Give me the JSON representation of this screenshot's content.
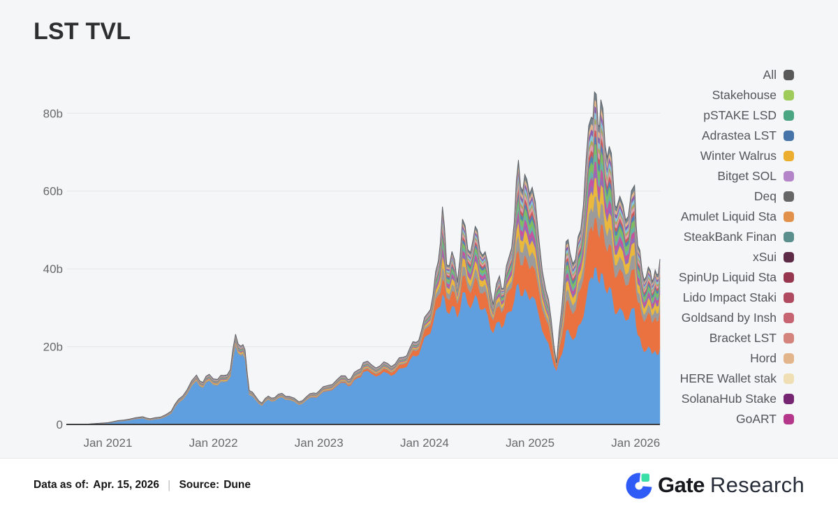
{
  "title": "LST TVL",
  "legend": {
    "items": [
      {
        "label": "All",
        "color": "#595959"
      },
      {
        "label": "Stakehouse",
        "color": "#9ecb59"
      },
      {
        "label": "pSTAKE LSD",
        "color": "#4ba684"
      },
      {
        "label": "Adrastea LST",
        "color": "#4674a9"
      },
      {
        "label": "Winter Walrus",
        "color": "#ecae2f"
      },
      {
        "label": "Bitget SOL",
        "color": "#b384c8"
      },
      {
        "label": "Deq",
        "color": "#666666"
      },
      {
        "label": "Amulet Liquid Sta",
        "color": "#e2914a"
      },
      {
        "label": "SteakBank Finan",
        "color": "#5b8f8d"
      },
      {
        "label": "xSui",
        "color": "#5e2b47"
      },
      {
        "label": "SpinUp Liquid Sta",
        "color": "#97374f"
      },
      {
        "label": "Lido Impact Staki",
        "color": "#b04a60"
      },
      {
        "label": "Goldsand by Insh",
        "color": "#c66571"
      },
      {
        "label": "Bracket LST",
        "color": "#d4837d"
      },
      {
        "label": "Hord",
        "color": "#e3b58a"
      },
      {
        "label": "HERE Wallet stak",
        "color": "#f0dfb4"
      },
      {
        "label": "SolanaHub Stake",
        "color": "#752572"
      },
      {
        "label": "GoART",
        "color": "#b5378b"
      }
    ]
  },
  "footer": {
    "data_as_of_label": "Data as of:",
    "data_as_of_value": "Apr. 15, 2026",
    "separator": "|",
    "source_label": "Source:",
    "source_value": "Dune",
    "brand_bold": "Gate",
    "brand_light": "Research"
  },
  "chart_data": {
    "type": "area",
    "stacked": true,
    "title": "LST TVL",
    "unit": "USD billions (b)",
    "grid": "horizontal",
    "legend_position": "right",
    "x_range": [
      2020.62,
      2026.23
    ],
    "x_tick_positions": [
      2021,
      2022,
      2023,
      2024,
      2025,
      2026
    ],
    "x_tick_labels": [
      "Jan 2021",
      "Jan 2022",
      "Jan 2023",
      "Jan 2024",
      "Jan 2025",
      "Jan 2026"
    ],
    "y_ticks": [
      0,
      20,
      40,
      60,
      80
    ],
    "y_tick_labels": [
      "0",
      "20b",
      "40b",
      "60b",
      "80b"
    ],
    "ylim": [
      0,
      91
    ],
    "x": [
      2020.62,
      2020.8,
      2021.0,
      2021.1,
      2021.2,
      2021.33,
      2021.4,
      2021.5,
      2021.6,
      2021.67,
      2021.75,
      2021.84,
      2021.9,
      2021.96,
      2022.04,
      2022.1,
      2022.16,
      2022.21,
      2022.26,
      2022.3,
      2022.34,
      2022.4,
      2022.46,
      2022.52,
      2022.58,
      2022.65,
      2022.72,
      2022.81,
      2022.88,
      2022.95,
      2023.0,
      2023.08,
      2023.17,
      2023.25,
      2023.3,
      2023.37,
      2023.42,
      2023.5,
      2023.58,
      2023.65,
      2023.72,
      2023.8,
      2023.86,
      2023.92,
      2023.97,
      2024.03,
      2024.08,
      2024.13,
      2024.17,
      2024.21,
      2024.26,
      2024.31,
      2024.36,
      2024.41,
      2024.46,
      2024.5,
      2024.55,
      2024.6,
      2024.65,
      2024.71,
      2024.75,
      2024.8,
      2024.85,
      2024.89,
      2024.93,
      2024.97,
      2025.02,
      2025.08,
      2025.15,
      2025.2,
      2025.25,
      2025.3,
      2025.34,
      2025.38,
      2025.43,
      2025.48,
      2025.53,
      2025.58,
      2025.61,
      2025.645,
      2025.67,
      2025.71,
      2025.75,
      2025.79,
      2025.82,
      2025.88,
      2025.93,
      2025.99,
      2026.02,
      2026.06,
      2026.1,
      2026.14,
      2026.17,
      2026.2,
      2026.23
    ],
    "series": [
      {
        "name": "base-layer-blue",
        "color": "#5f9fe0",
        "values": [
          0.01,
          0.05,
          0.35,
          0.8,
          1.1,
          1.6,
          1.1,
          1.5,
          2.8,
          5.6,
          7.8,
          11.2,
          9.4,
          11.2,
          10.0,
          10.9,
          12.2,
          20.3,
          17.6,
          16.8,
          7.6,
          6.3,
          4.8,
          6.4,
          6.0,
          7.0,
          6.3,
          5.0,
          6.2,
          7.0,
          7.4,
          8.6,
          9.9,
          10.7,
          10.0,
          12.0,
          13.5,
          13.0,
          12.8,
          13.2,
          13.0,
          14.5,
          16.5,
          17.5,
          20.0,
          23.0,
          26.0,
          30.0,
          33.5,
          29.0,
          30.5,
          27.5,
          34.0,
          31.0,
          31.5,
          32.5,
          29.5,
          28.0,
          23.5,
          26.5,
          25.5,
          29.0,
          32.0,
          36.3,
          33.0,
          34.0,
          33.0,
          28.5,
          22.0,
          18.0,
          13.8,
          18.0,
          24.0,
          23.0,
          22.5,
          26.0,
          32.0,
          38.0,
          40.3,
          37.0,
          39.0,
          35.0,
          35.5,
          31.0,
          28.5,
          29.0,
          27.0,
          30.0,
          23.0,
          20.0,
          19.0,
          19.5,
          18.5,
          18.0,
          19.5
        ]
      },
      {
        "name": "second-layer-orange",
        "color": "#e97240",
        "values": [
          0,
          0,
          0,
          0,
          0,
          0,
          0,
          0,
          0,
          0,
          0,
          0,
          0,
          0,
          0,
          0,
          0,
          0,
          0,
          0,
          0,
          0,
          0,
          0,
          0,
          0,
          0,
          0,
          0,
          0.1,
          0.1,
          0.15,
          0.2,
          0.25,
          0.3,
          0.4,
          0.5,
          0.6,
          0.7,
          0.8,
          0.9,
          1.0,
          1.2,
          1.4,
          1.6,
          2.0,
          2.5,
          3.2,
          4.0,
          3.6,
          3.8,
          3.5,
          4.2,
          4.0,
          4.2,
          4.5,
          4.2,
          4.0,
          3.3,
          4.0,
          4.2,
          5.5,
          7.0,
          8.5,
          8.0,
          8.5,
          8.0,
          6.5,
          5.0,
          4.0,
          0.8,
          4.5,
          7.5,
          7.0,
          7.0,
          9.0,
          11.5,
          13.0,
          12.6,
          12.0,
          12.5,
          11.5,
          11.0,
          10.0,
          9.5,
          9.8,
          9.0,
          10.0,
          8.5,
          8.0,
          8.3,
          8.6,
          8.2,
          8.5,
          9.8
        ]
      },
      {
        "name": "other-protocols-combined",
        "color": "multi-stripe",
        "values": [
          0.01,
          0.03,
          0.1,
          0.2,
          0.25,
          0.4,
          0.35,
          0.4,
          0.6,
          0.9,
          1.1,
          1.5,
          1.4,
          1.7,
          1.6,
          1.7,
          1.9,
          2.9,
          2.5,
          2.4,
          1.1,
          0.9,
          0.7,
          0.9,
          0.9,
          1.0,
          0.9,
          0.8,
          0.9,
          1.0,
          1.1,
          1.25,
          1.4,
          1.55,
          1.4,
          1.6,
          1.9,
          1.7,
          1.6,
          1.7,
          1.6,
          1.8,
          1.9,
          2.2,
          2.5,
          3.6,
          4.7,
          8.8,
          18.5,
          8.4,
          10.2,
          5.5,
          14.6,
          10.0,
          11.8,
          13.0,
          9.8,
          9.5,
          4.0,
          7.7,
          5.3,
          8.5,
          13.0,
          23.2,
          19.0,
          20.5,
          20.0,
          13.5,
          7.5,
          5.0,
          1.2,
          7.5,
          15.5,
          14.0,
          13.0,
          15.0,
          24.5,
          28.0,
          32.6,
          28.0,
          32.0,
          25.5,
          25.0,
          21.0,
          17.8,
          17.7,
          17.5,
          21.5,
          14.5,
          11.7,
          10.7,
          11.4,
          10.8,
          12.0,
          13.2
        ]
      }
    ],
    "others_stripes": [
      {
        "color": "#9b9b9b",
        "weight": 0.17
      },
      {
        "color": "#e9b83d",
        "weight": 0.15
      },
      {
        "color": "#8f6db8",
        "weight": 0.06
      },
      {
        "color": "#c8539c",
        "weight": 0.07
      },
      {
        "color": "#67b1a9",
        "weight": 0.06
      },
      {
        "color": "#80bd60",
        "weight": 0.08
      },
      {
        "color": "#5381b5",
        "weight": 0.06
      },
      {
        "color": "#cc5a5a",
        "weight": 0.05
      },
      {
        "color": "#e0a0ae",
        "weight": 0.05
      },
      {
        "color": "#a9a95d",
        "weight": 0.04
      },
      {
        "color": "#84c6d8",
        "weight": 0.05
      },
      {
        "color": "#8a5fae",
        "weight": 0.05
      },
      {
        "color": "#e2b58b",
        "weight": 0.05
      },
      {
        "color": "#75858f",
        "weight": 0.06
      }
    ],
    "axis_color": "#3e3e40",
    "grid_color": "#e5e5e7",
    "tick_text_color": "#68686b",
    "total_outline_color": "#55565a"
  }
}
